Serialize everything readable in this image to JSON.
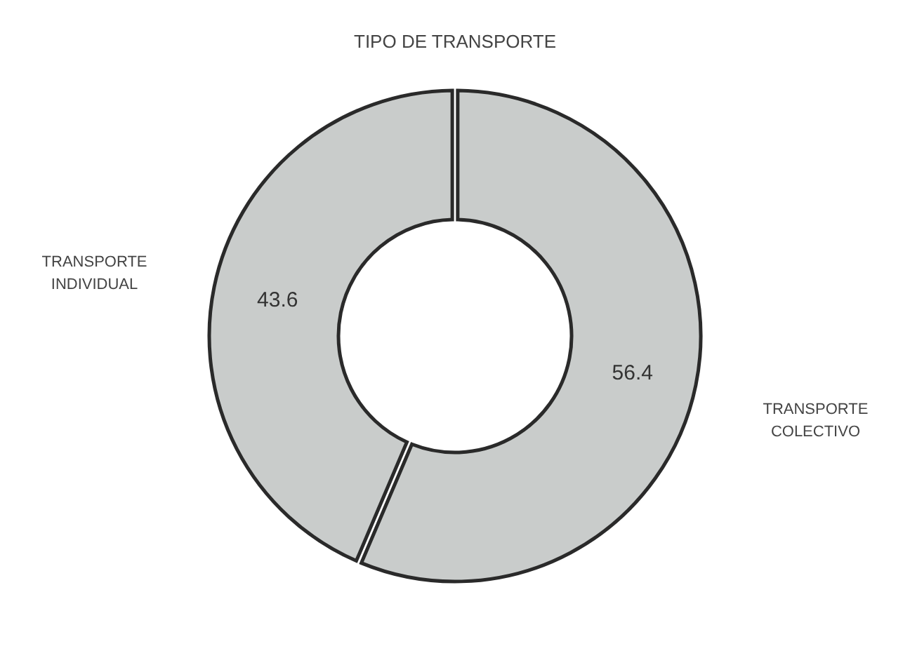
{
  "chart_data": {
    "type": "donut",
    "title": "TIPO DE TRANSPORTE",
    "categories": [
      "TRANSPORTE COLECTIVO",
      "TRANSPORTE INDIVIDUAL"
    ],
    "values": [
      56.4,
      43.6
    ],
    "colors": [
      "#c9cccb",
      "#c9cccb"
    ],
    "data_labels": true
  }
}
